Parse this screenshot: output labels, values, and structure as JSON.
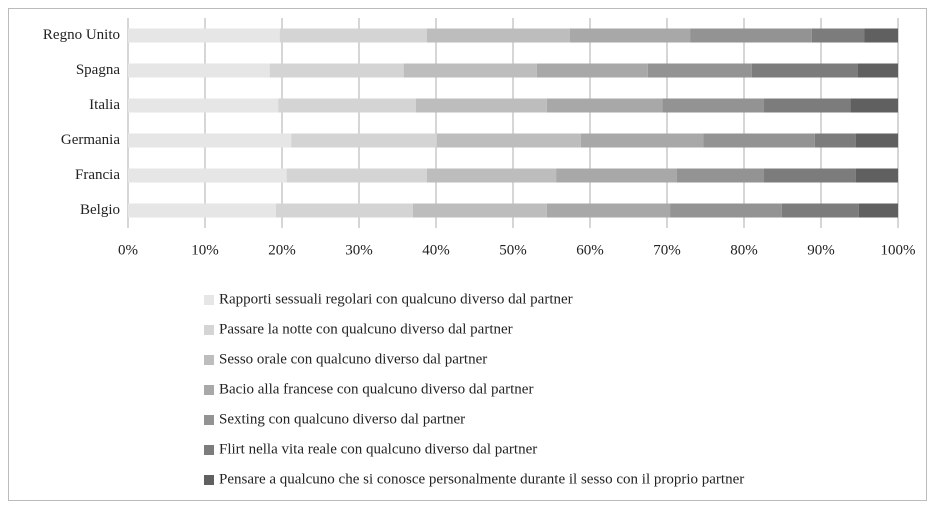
{
  "chart_data": {
    "type": "bar",
    "orientation": "horizontal",
    "stacked": true,
    "categories": [
      "Regno Unito",
      "Spagna",
      "Italia",
      "Germania",
      "Francia",
      "Belgio"
    ],
    "series": [
      {
        "name": "Rapporti sessuali regolari con qualcuno diverso dal partner",
        "color": "#e6e6e6",
        "values": [
          19.7,
          18.4,
          19.5,
          21.2,
          20.6,
          19.2
        ]
      },
      {
        "name": "Passare la notte con qualcuno diverso dal partner",
        "color": "#d4d4d4",
        "values": [
          19.1,
          17.4,
          17.9,
          18.9,
          18.2,
          17.8
        ]
      },
      {
        "name": "Sesso orale con qualcuno diverso dal partner",
        "color": "#bdbdbd",
        "values": [
          18.6,
          17.3,
          17.0,
          18.7,
          16.8,
          17.4
        ]
      },
      {
        "name": "Bacio alla francese con qualcuno diverso dal partner",
        "color": "#a8a8a8",
        "values": [
          15.6,
          14.4,
          15.0,
          15.9,
          15.7,
          16.0
        ]
      },
      {
        "name": "Sexting con qualcuno diverso dal partner",
        "color": "#939393",
        "values": [
          15.8,
          13.5,
          13.2,
          14.5,
          11.3,
          14.5
        ]
      },
      {
        "name": "Flirt nella vita reale con qualcuno diverso dal partner",
        "color": "#7c7c7c",
        "values": [
          6.8,
          13.8,
          11.2,
          5.3,
          11.9,
          10.0
        ]
      },
      {
        "name": "Pensare a qualcuno che si conosce personalmente durante il sesso con il proprio partner",
        "color": "#606060",
        "values": [
          4.4,
          5.2,
          6.2,
          5.5,
          5.5,
          5.1
        ]
      }
    ],
    "xlim": [
      0,
      100
    ],
    "xticks": [
      {
        "value": 0,
        "label": "0%"
      },
      {
        "value": 10,
        "label": "10%"
      },
      {
        "value": 20,
        "label": "20%"
      },
      {
        "value": 30,
        "label": "30%"
      },
      {
        "value": 40,
        "label": "40%"
      },
      {
        "value": 50,
        "label": "50%"
      },
      {
        "value": 60,
        "label": "60%"
      },
      {
        "value": 70,
        "label": "70%"
      },
      {
        "value": 80,
        "label": "80%"
      },
      {
        "value": 90,
        "label": "90%"
      },
      {
        "value": 100,
        "label": "100%"
      }
    ],
    "grid": true
  }
}
